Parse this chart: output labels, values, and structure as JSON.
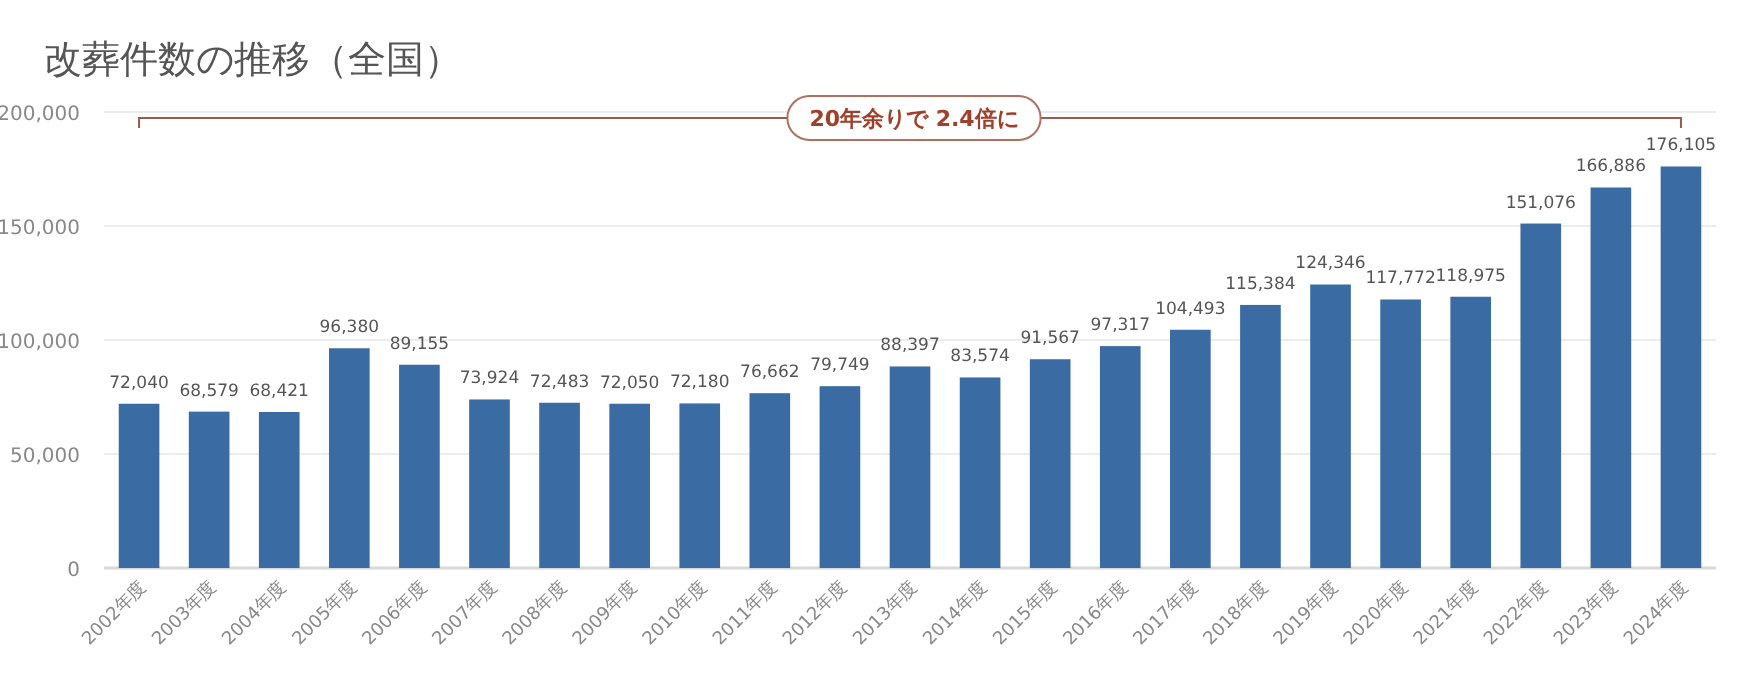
{
  "chart_data": {
    "type": "bar",
    "title": "改葬件数の推移（全国）",
    "categories": [
      "2002年度",
      "2003年度",
      "2004年度",
      "2005年度",
      "2006年度",
      "2007年度",
      "2008年度",
      "2009年度",
      "2010年度",
      "2011年度",
      "2012年度",
      "2013年度",
      "2014年度",
      "2015年度",
      "2016年度",
      "2017年度",
      "2018年度",
      "2019年度",
      "2020年度",
      "2021年度",
      "2022年度",
      "2023年度",
      "2024年度"
    ],
    "values": [
      72040,
      68579,
      68421,
      96380,
      89155,
      73924,
      72483,
      72050,
      72180,
      76662,
      79749,
      88397,
      83574,
      91567,
      97317,
      104493,
      115384,
      124346,
      117772,
      118975,
      151076,
      166886,
      176105
    ],
    "value_labels": [
      "72,040",
      "68,579",
      "68,421",
      "96,380",
      "89,155",
      "73,924",
      "72,483",
      "72,050",
      "72,180",
      "76,662",
      "79,749",
      "88,397",
      "83,574",
      "91,567",
      "97,317",
      "104,493",
      "115,384",
      "124,346",
      "117,772",
      "118,975",
      "151,076",
      "166,886",
      "176,105"
    ],
    "color": "#3a6ba3",
    "ylim": [
      0,
      200000
    ],
    "yticks": [
      0,
      {
        "value": 50000,
        "label": "50,000"
      },
      {
        "value": 100000,
        "label": "100,000"
      },
      {
        "value": 150000,
        "label": "150,000"
      },
      {
        "value": 200000,
        "label": "200,000"
      }
    ],
    "grid": "y",
    "annotations": [
      "20年余りで 2.4倍に"
    ]
  }
}
